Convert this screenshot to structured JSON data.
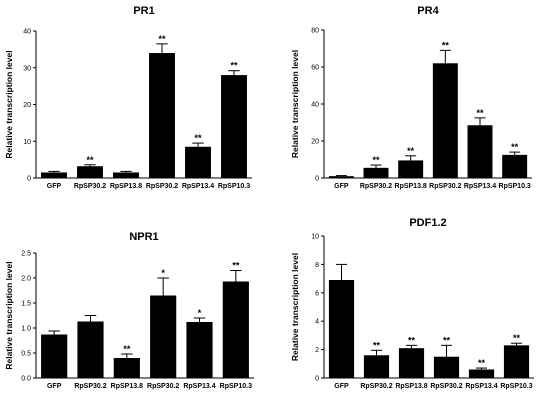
{
  "chart_data": [
    {
      "type": "bar",
      "title": "PR1",
      "ylabel": "Relative transcription level",
      "xlabel": "",
      "ylim": [
        0,
        40
      ],
      "yticks": [
        0,
        10,
        20,
        30,
        40
      ],
      "categories": [
        "GFP",
        "RpSP30.2",
        "RpSP13.8",
        "RpSP30.2",
        "RpSP13.4",
        "RpSP10.3"
      ],
      "values": [
        1.5,
        3.2,
        1.5,
        34.0,
        8.5,
        28.0
      ],
      "errors": [
        0.3,
        0.4,
        0.3,
        2.5,
        1.0,
        1.2
      ],
      "significance": [
        "",
        "**",
        "",
        "**",
        "**",
        "**"
      ],
      "bar_color": "#000000"
    },
    {
      "type": "bar",
      "title": "PR4",
      "ylabel": "Relative transcription level",
      "xlabel": "",
      "ylim": [
        0,
        80
      ],
      "yticks": [
        0,
        20,
        40,
        60,
        80
      ],
      "categories": [
        "GFP",
        "RpSP30.2",
        "RpSP13.8",
        "RpSP30.2",
        "RpSP13.4",
        "RpSP10.3"
      ],
      "values": [
        1.0,
        5.5,
        9.5,
        62.0,
        28.5,
        12.5
      ],
      "errors": [
        0.3,
        1.5,
        2.5,
        7.0,
        4.0,
        1.5
      ],
      "significance": [
        "",
        "**",
        "**",
        "**",
        "**",
        "**"
      ],
      "bar_color": "#000000"
    },
    {
      "type": "bar",
      "title": "NPR1",
      "ylabel": "Relative transcription level",
      "xlabel": "",
      "ylim": [
        0,
        2.5
      ],
      "yticks": [
        0.0,
        0.5,
        1.0,
        1.5,
        2.0,
        2.5
      ],
      "categories": [
        "GFP",
        "RpSP30.2",
        "RpSP13.8",
        "RpSP30.2",
        "RpSP13.4",
        "RpSP10.3"
      ],
      "values": [
        0.87,
        1.13,
        0.4,
        1.65,
        1.12,
        1.93
      ],
      "errors": [
        0.07,
        0.12,
        0.08,
        0.35,
        0.08,
        0.22
      ],
      "significance": [
        "",
        "",
        "**",
        "*",
        "*",
        "**"
      ],
      "bar_color": "#000000"
    },
    {
      "type": "bar",
      "title": "PDF1.2",
      "ylabel": "Relative transcription level",
      "xlabel": "",
      "ylim": [
        0,
        10
      ],
      "yticks": [
        0,
        2,
        4,
        6,
        8,
        10
      ],
      "categories": [
        "GFP",
        "RpSP30.2",
        "RpSP13.8",
        "RpSP30.2",
        "RpSP13.4",
        "RpSP10.3"
      ],
      "values": [
        6.9,
        1.6,
        2.1,
        1.5,
        0.6,
        2.3
      ],
      "errors": [
        1.1,
        0.35,
        0.2,
        0.8,
        0.1,
        0.15
      ],
      "significance": [
        "",
        "**",
        "**",
        "**",
        "**",
        "**"
      ],
      "bar_color": "#000000"
    }
  ]
}
